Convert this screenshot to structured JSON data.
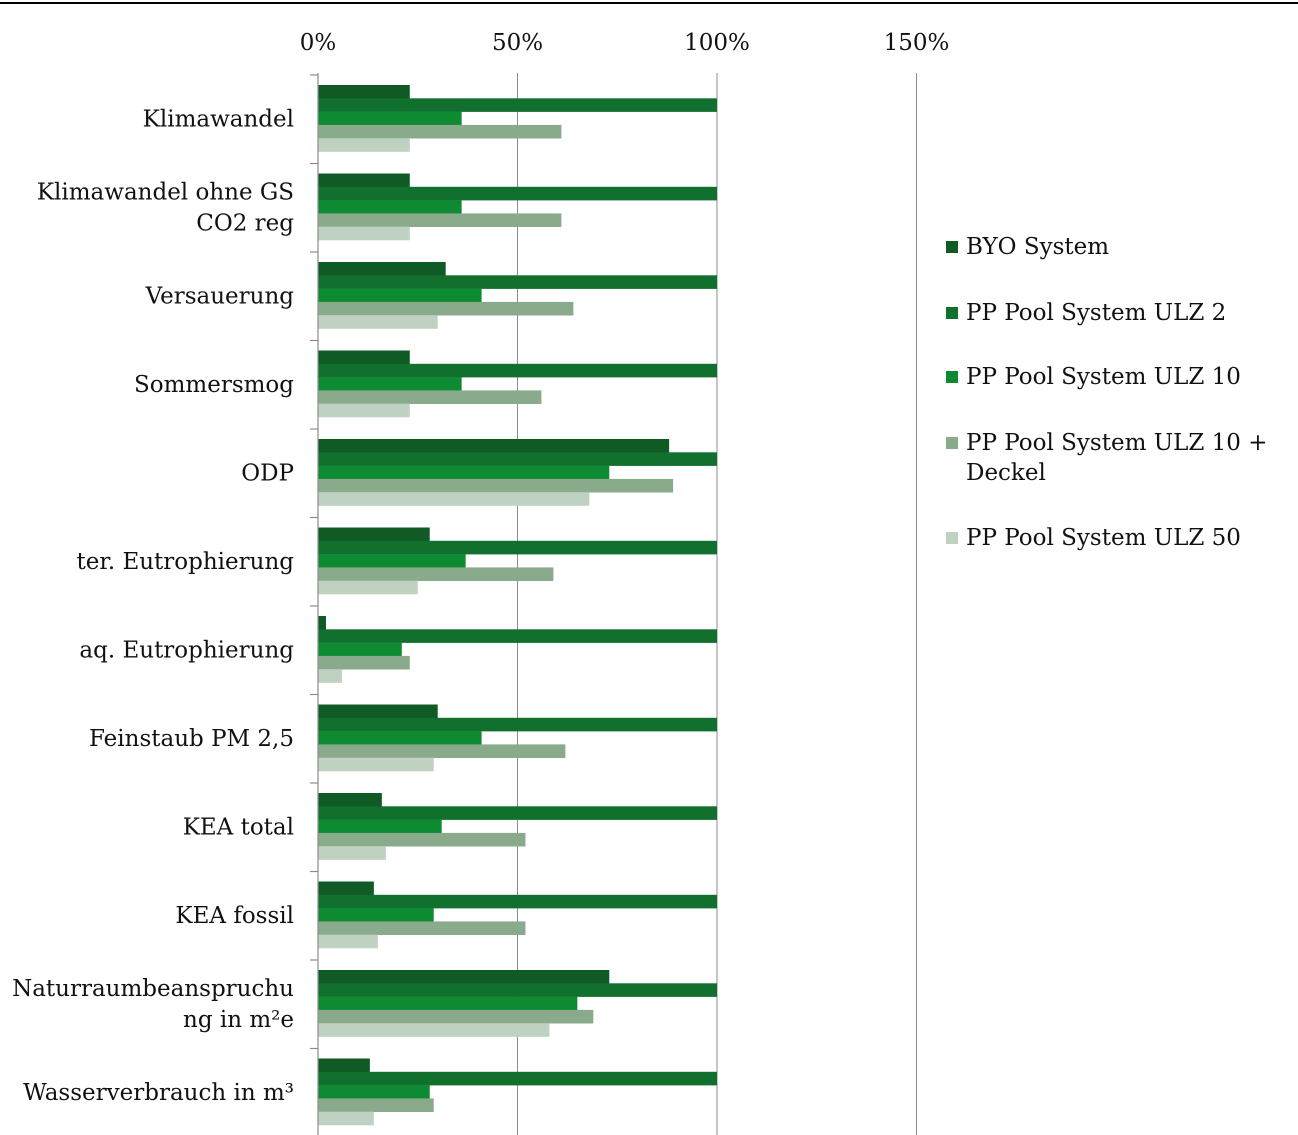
{
  "chart_data": {
    "type": "bar",
    "orientation": "horizontal",
    "categories": [
      "Klimawandel",
      "Klimawandel ohne GS CO2 reg",
      "Versauerung",
      "Sommersmog",
      "ODP",
      "ter. Eutrophierung",
      "aq. Eutrophierung",
      "Feinstaub PM 2,5",
      "KEA total",
      "KEA fossil",
      "Naturraumbeanspruchung in m²e",
      "Wasserverbrauch in m³"
    ],
    "category_label_lines": [
      [
        "Klimawandel"
      ],
      [
        "Klimawandel ohne GS",
        "CO2 reg"
      ],
      [
        "Versauerung"
      ],
      [
        "Sommersmog"
      ],
      [
        "ODP"
      ],
      [
        "ter. Eutrophierung"
      ],
      [
        "aq. Eutrophierung"
      ],
      [
        "Feinstaub PM 2,5"
      ],
      [
        "KEA total"
      ],
      [
        "KEA fossil"
      ],
      [
        "Naturraumbeanspruchu",
        "ng in m²e"
      ],
      [
        "Wasserverbrauch in m³"
      ]
    ],
    "series": [
      {
        "name": "BYO System",
        "color": "#0f5a25",
        "values": [
          23,
          23,
          32,
          23,
          88,
          28,
          2,
          30,
          16,
          14,
          73,
          13
        ]
      },
      {
        "name": "PP Pool System ULZ 2",
        "color": "#12702e",
        "values": [
          100,
          100,
          100,
          100,
          100,
          100,
          100,
          100,
          100,
          100,
          100,
          100
        ]
      },
      {
        "name": "PP Pool System ULZ 10",
        "color": "#0e8a32",
        "values": [
          36,
          36,
          41,
          36,
          73,
          37,
          21,
          41,
          31,
          29,
          65,
          28
        ]
      },
      {
        "name": "PP Pool System ULZ 10 + Deckel",
        "color": "#8aaa8c",
        "values": [
          61,
          61,
          64,
          56,
          89,
          59,
          23,
          62,
          52,
          52,
          69,
          29
        ]
      },
      {
        "name": "PP Pool System ULZ 50",
        "color": "#bfd1c0",
        "values": [
          23,
          23,
          30,
          23,
          68,
          25,
          6,
          29,
          17,
          15,
          58,
          14
        ]
      }
    ],
    "legend_label_lines": [
      [
        "BYO System"
      ],
      [
        "PP Pool System ULZ 2"
      ],
      [
        "PP Pool System ULZ 10"
      ],
      [
        "PP Pool System ULZ 10 +",
        "Deckel"
      ],
      [
        "PP Pool System ULZ 50"
      ]
    ],
    "xlim": [
      0,
      150
    ],
    "xticks": [
      0,
      50,
      100,
      150
    ],
    "xtick_labels": [
      "0%",
      "50%",
      "100%",
      "150%"
    ],
    "xaxis_position": "top",
    "grid": true,
    "legend": "right",
    "title": "",
    "xlabel": "",
    "ylabel": ""
  }
}
